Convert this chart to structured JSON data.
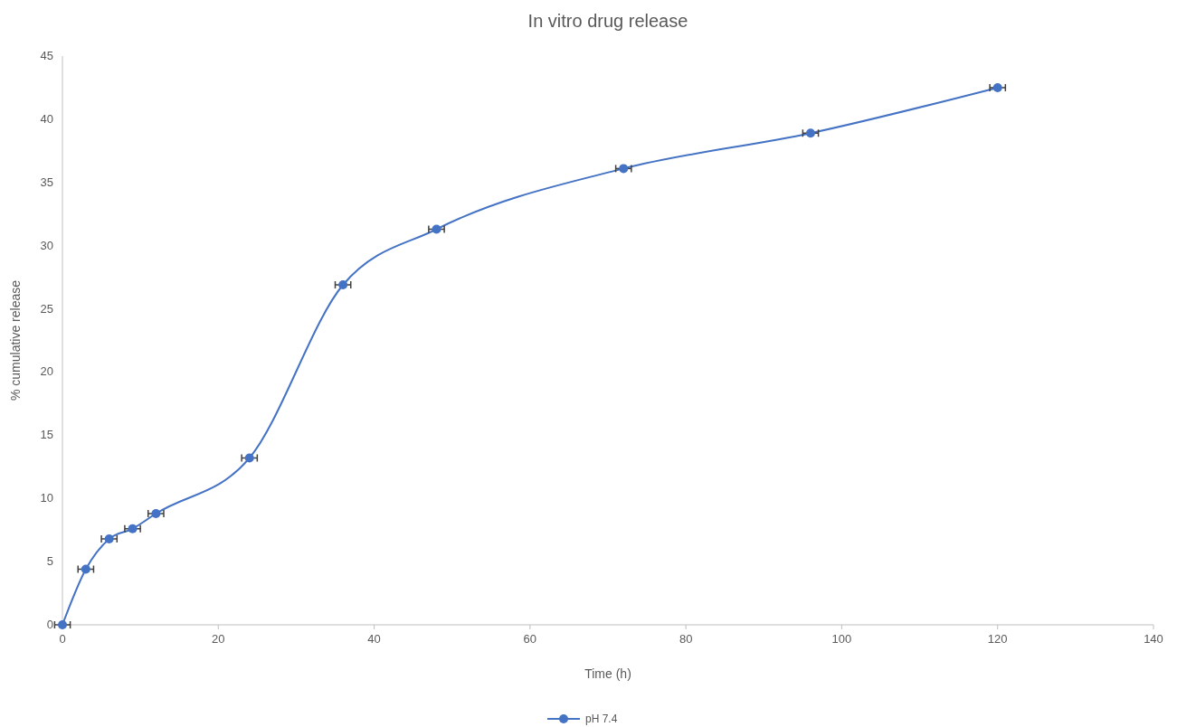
{
  "chart_data": {
    "type": "line",
    "title": "In vitro drug release",
    "xlabel": "Time (h)",
    "ylabel": "% cumulative release",
    "x": [
      0,
      3,
      6,
      9,
      12,
      24,
      36,
      48,
      72,
      96,
      120
    ],
    "series": [
      {
        "name": "pH 7.4",
        "color": "#4472c4",
        "values": [
          0,
          4.4,
          6.8,
          7.6,
          8.8,
          13.2,
          26.9,
          31.3,
          36.1,
          38.9,
          42.5
        ],
        "xerrors": [
          1,
          1,
          1,
          1,
          1,
          1,
          1,
          1,
          1,
          1,
          1
        ]
      }
    ],
    "xlim": [
      0,
      140
    ],
    "xticks": [
      0,
      20,
      40,
      60,
      80,
      100,
      120,
      140
    ],
    "ylim": [
      0,
      45
    ],
    "yticks": [
      0,
      5,
      10,
      15,
      20,
      25,
      30,
      35,
      40,
      45
    ],
    "grid": false,
    "legend": "bottom",
    "marker": "circle",
    "line_style": "solid"
  }
}
